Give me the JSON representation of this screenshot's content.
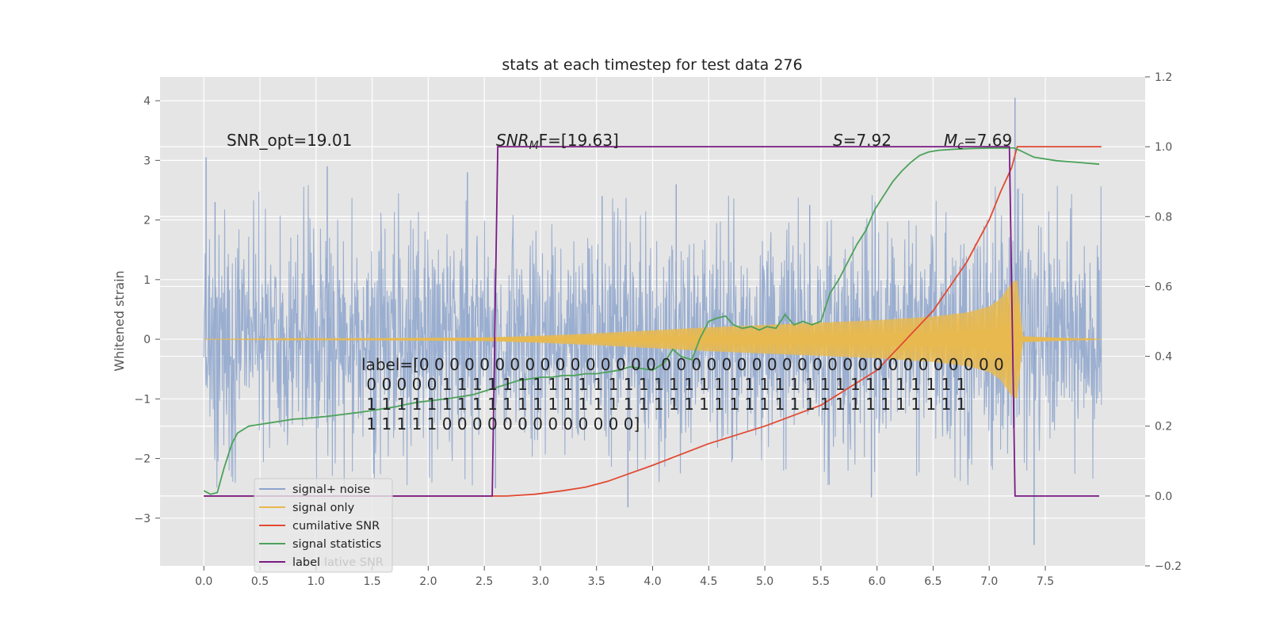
{
  "chart_data": {
    "type": "line",
    "title": "stats at each timestep for test data 276",
    "ylabel": "Whitened strain",
    "xlim": [
      -0.39,
      8.39
    ],
    "ylim": [
      -3.8,
      4.4
    ],
    "y2lim": [
      -0.2,
      1.2
    ],
    "grid": true,
    "x_ticks": [
      0.0,
      0.5,
      1.0,
      1.5,
      2.0,
      2.5,
      3.0,
      3.5,
      4.0,
      4.5,
      5.0,
      5.5,
      6.0,
      6.5,
      7.0,
      7.5
    ],
    "x_tick_labels": [
      "0.0",
      "0.5",
      "1.0",
      "1.5",
      "2.0",
      "2.5",
      "3.0",
      "3.5",
      "4.0",
      "4.5",
      "5.0",
      "5.5",
      "6.0",
      "6.5",
      "7.0",
      "7.5"
    ],
    "y_ticks": [
      -3,
      -2,
      -1,
      0,
      1,
      2,
      3,
      4
    ],
    "y_tick_labels": [
      "−3",
      "−2",
      "−1",
      "0",
      "1",
      "2",
      "3",
      "4"
    ],
    "y2_ticks": [
      -0.2,
      0.0,
      0.2,
      0.4,
      0.6,
      0.8,
      1.0,
      1.2
    ],
    "y2_tick_labels": [
      "−0.2",
      "0.0",
      "0.2",
      "0.4",
      "0.6",
      "0.8",
      "1.0",
      "1.2"
    ],
    "series": [
      {
        "name": "signal+ noise",
        "axis": "left",
        "color": "#8da4cc",
        "style": "noise",
        "x_range": [
          0.0,
          8.0
        ],
        "spread": 0.9,
        "peaks": [
          {
            "x": 0.02,
            "y": 3.05
          },
          {
            "x": 0.1,
            "y": 2.3
          },
          {
            "x": 1.1,
            "y": 2.9
          },
          {
            "x": 2.35,
            "y": 2.8
          },
          {
            "x": 3.55,
            "y": 2.4
          },
          {
            "x": 4.21,
            "y": 2.6
          },
          {
            "x": 5.4,
            "y": 2.25
          },
          {
            "x": 7.23,
            "y": 4.05
          },
          {
            "x": 3.78,
            "y": -2.82
          },
          {
            "x": 5.95,
            "y": -2.65
          },
          {
            "x": 7.4,
            "y": -3.45
          },
          {
            "x": 2.6,
            "y": -2.5
          }
        ]
      },
      {
        "name": "signal only",
        "axis": "left",
        "color": "#e8b94f",
        "style": "chirp",
        "x_range": [
          0.0,
          8.0
        ],
        "envelope": {
          "x": [
            0.0,
            2.5,
            3.0,
            3.5,
            4.0,
            4.5,
            5.0,
            5.5,
            6.0,
            6.5,
            6.8,
            7.0,
            7.1,
            7.2,
            7.25,
            7.3,
            8.0
          ],
          "y": [
            0.0,
            0.03,
            0.06,
            0.1,
            0.15,
            0.2,
            0.24,
            0.28,
            0.32,
            0.38,
            0.45,
            0.55,
            0.68,
            0.95,
            1.0,
            0.05,
            0.0
          ]
        }
      },
      {
        "name": "cumilative SNR",
        "axis": "right",
        "color": "#e24a33",
        "x": [
          0.0,
          2.5,
          2.7,
          2.95,
          3.2,
          3.4,
          3.6,
          3.8,
          4.0,
          4.5,
          5.0,
          5.5,
          6.0,
          6.5,
          6.8,
          7.0,
          7.1,
          7.2,
          7.25,
          8.0
        ],
        "y": [
          0.0,
          0.0,
          0.0,
          0.005,
          0.015,
          0.025,
          0.042,
          0.065,
          0.088,
          0.15,
          0.2,
          0.26,
          0.36,
          0.53,
          0.67,
          0.79,
          0.87,
          0.94,
          1.0,
          1.0
        ]
      },
      {
        "name": "signal statistics",
        "axis": "right",
        "color": "#4ca25a",
        "x": [
          0.0,
          0.06,
          0.12,
          0.18,
          0.25,
          0.3,
          0.4,
          0.5,
          0.6,
          0.7,
          0.8,
          0.9,
          1.0,
          1.1,
          1.2,
          1.3,
          1.4,
          1.5,
          1.6,
          1.7,
          1.8,
          1.9,
          2.0,
          2.1,
          2.2,
          2.3,
          2.4,
          2.5,
          2.6,
          2.7,
          2.8,
          2.9,
          3.0,
          3.1,
          3.2,
          3.3,
          3.4,
          3.5,
          3.6,
          3.7,
          3.8,
          3.9,
          4.0,
          4.1,
          4.18,
          4.25,
          4.35,
          4.42,
          4.5,
          4.58,
          4.65,
          4.72,
          4.8,
          4.88,
          4.95,
          5.02,
          5.1,
          5.18,
          5.26,
          5.34,
          5.42,
          5.5,
          5.58,
          5.66,
          5.74,
          5.82,
          5.9,
          5.98,
          6.06,
          6.14,
          6.22,
          6.3,
          6.38,
          6.46,
          6.55,
          6.7,
          6.85,
          7.0,
          7.15,
          7.22,
          7.27,
          7.4,
          7.6,
          7.8,
          7.98
        ],
        "y": [
          0.015,
          0.005,
          0.01,
          0.08,
          0.15,
          0.18,
          0.2,
          0.205,
          0.21,
          0.215,
          0.22,
          0.222,
          0.225,
          0.228,
          0.232,
          0.236,
          0.24,
          0.245,
          0.25,
          0.255,
          0.262,
          0.268,
          0.272,
          0.276,
          0.28,
          0.285,
          0.29,
          0.3,
          0.31,
          0.32,
          0.33,
          0.335,
          0.34,
          0.34,
          0.345,
          0.345,
          0.35,
          0.35,
          0.355,
          0.36,
          0.37,
          0.365,
          0.36,
          0.38,
          0.42,
          0.4,
          0.39,
          0.45,
          0.5,
          0.51,
          0.515,
          0.49,
          0.48,
          0.485,
          0.475,
          0.485,
          0.48,
          0.52,
          0.49,
          0.5,
          0.49,
          0.5,
          0.58,
          0.62,
          0.67,
          0.72,
          0.76,
          0.82,
          0.86,
          0.9,
          0.93,
          0.955,
          0.975,
          0.985,
          0.99,
          0.993,
          0.995,
          0.996,
          0.996,
          0.997,
          0.99,
          0.97,
          0.96,
          0.955,
          0.95
        ]
      },
      {
        "name": "label",
        "axis": "right",
        "color": "#7a1a84",
        "x": [
          0.0,
          2.57,
          2.62,
          7.18,
          7.23,
          7.98
        ],
        "y": [
          0.0,
          0.0,
          1.0,
          1.0,
          0.0,
          0.0
        ]
      }
    ],
    "annotations": {
      "snr_opt": "SNR_opt=19.01",
      "snr_mf_prefix": "SNR",
      "snr_mf_sub": "M",
      "snr_mf_suffix": "F=[19.63]",
      "s_prefix": "S",
      "s_suffix": "=7.92",
      "mc_prefix": "M",
      "mc_sub": "c",
      "mc_suffix": "=7.69",
      "label_lines": [
        "label=[0 0 0 0 0 0 0 0 0 0 0 0 0 0 0 0 0 0 0 0 0 0 0 0 0 0 0 0 0 0 0 0 0 0 0 0 0 0 0",
        " 0 0 0 0 0 1 1 1 1 1 1 1 1 1 1 1 1 1 1 1 1 1 1 1 1 1 1 1 1 1 1 1 1 1 1 1 1 1 1 1",
        " 1 1 1 1 1 1 1 1 1 1 1 1 1 1 1 1 1 1 1 1 1 1 1 1 1 1 1 1 1 1 1 1 1 1 1 1 1 1 1 1",
        " 1 1 1 1 1 0 0 0 0 0 0 0 0 0 0 0 0 0]"
      ],
      "legend_ghost": "lative SNR"
    },
    "legend": {
      "placement": "lower-left",
      "entries": [
        "signal+ noise",
        "signal only",
        "cumilative SNR",
        "signal statistics",
        "label"
      ]
    }
  }
}
